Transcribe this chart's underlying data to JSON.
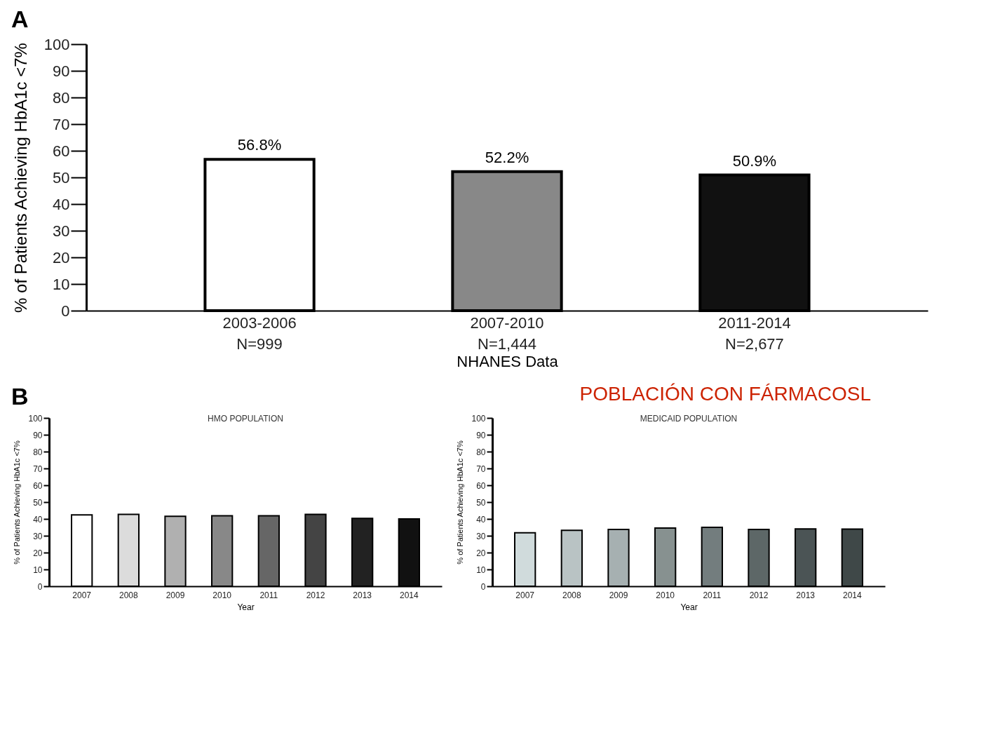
{
  "chart_data": [
    {
      "type": "bar",
      "annotations": [
        "A"
      ],
      "xlabel": "NHANES Data",
      "ylabel": "% of Patients  Achieving HbA1c <7%",
      "categories": [
        "2003-2006\nN=999",
        "2007-2010\nN=1,444",
        "2011-2014\nN=2,677"
      ],
      "values": [
        56.8,
        52.2,
        50.9
      ],
      "colors": [
        "#ffffff",
        "#888888",
        "#111111"
      ],
      "value_labels": [
        "56.8%",
        "52.2%",
        "50.9%"
      ],
      "ylim": [
        0,
        100
      ],
      "yticks": [
        0,
        10,
        20,
        30,
        40,
        50,
        60,
        70,
        80,
        90,
        100
      ],
      "grid": false
    },
    {
      "type": "bar",
      "annotations": [
        "B"
      ],
      "title": "HMO POPULATION",
      "xlabel": "Year",
      "ylabel": "% of Patients Achieving HbA1c <7%",
      "categories": [
        "2007",
        "2008",
        "2009",
        "2010",
        "2011",
        "2012",
        "2013",
        "2014"
      ],
      "values": [
        42.4,
        42.7,
        41.6,
        41.9,
        41.9,
        42.7,
        40.3,
        40.0
      ],
      "colors": [
        "#ffffff",
        "#dcdcdc",
        "#b0b0b0",
        "#888888",
        "#666666",
        "#444444",
        "#222222",
        "#111111"
      ],
      "ylim": [
        0,
        100
      ],
      "yticks": [
        0,
        10,
        20,
        30,
        40,
        50,
        60,
        70,
        80,
        90,
        100
      ],
      "grid": false
    },
    {
      "type": "bar",
      "annotations": [
        "POBLACIÓN CON FÁRMACOSL"
      ],
      "title": "MEDICAID POPULATION",
      "xlabel": "Year",
      "ylabel": "% of Patients Achieving HbA1c <7%",
      "categories": [
        "2007",
        "2008",
        "2009",
        "2010",
        "2011",
        "2012",
        "2013",
        "2014"
      ],
      "values": [
        31.8,
        33.2,
        33.8,
        34.6,
        35.0,
        33.8,
        34.1,
        34.0
      ],
      "colors": [
        "#d0dbdc",
        "#b9c3c4",
        "#a6b0b1",
        "#879190",
        "#737d7e",
        "#5d6767",
        "#4b5455",
        "#3f4848"
      ],
      "ylim": [
        0,
        100
      ],
      "yticks": [
        0,
        10,
        20,
        30,
        40,
        50,
        60,
        70,
        80,
        90,
        100
      ],
      "grid": false
    }
  ]
}
